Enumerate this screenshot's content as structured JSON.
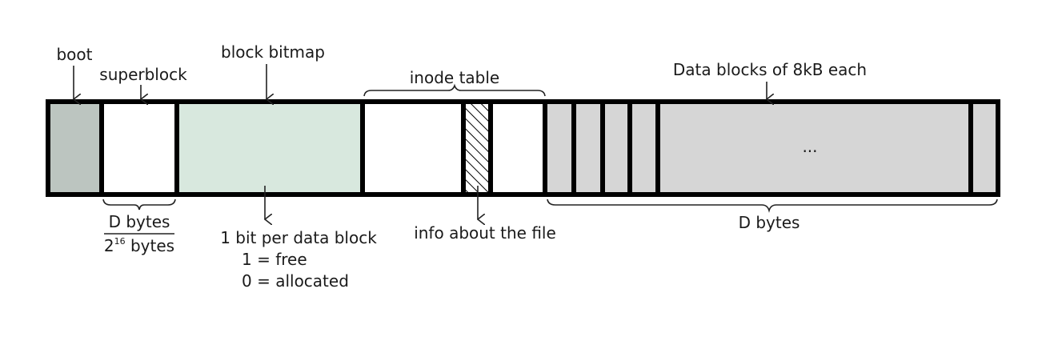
{
  "labels": {
    "boot": "boot",
    "superblock": "superblock",
    "block_bitmap": "block bitmap",
    "inode_table": "inode table",
    "data_blocks": "Data blocks of 8kB each",
    "ellipsis": "...",
    "sb_size_numerator": "D bytes",
    "sb_size_denominator_base": "2",
    "sb_size_denominator_exp": "16",
    "sb_size_denominator_unit": " bytes",
    "bitmap_note_line1": "1 bit per data block",
    "bitmap_note_line2": "1 = free",
    "bitmap_note_line3": "0 = allocated",
    "inode_note": "info about the file",
    "data_size": "D bytes"
  },
  "colors": {
    "boot_fill": "#bcc5c0",
    "bitmap_fill": "#d8e8de",
    "data_fill": "#d6d6d6",
    "plain_fill": "#ffffff",
    "outline": "#000000"
  }
}
